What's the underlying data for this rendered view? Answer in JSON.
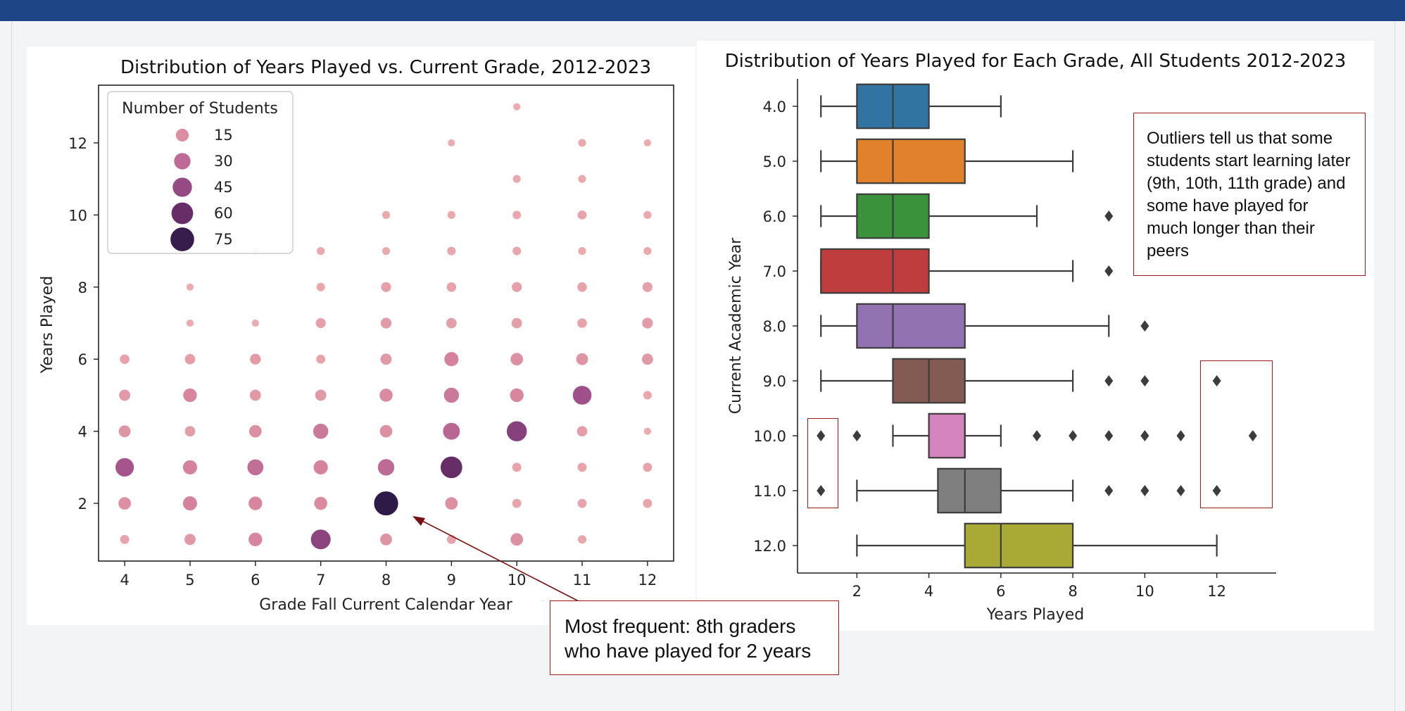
{
  "colors": {
    "header_bar": "#1e4586",
    "annotation_border": "#9b1c1c",
    "bubble_scale": [
      "#eeb0b0",
      "#d6839c",
      "#a85690",
      "#6b2f6a",
      "#2e1a47"
    ]
  },
  "annotations": {
    "outliers_note": "Outliers tell us that some students start learning later (9th, 10th, 11th grade) and some have played for much longer than their peers",
    "frequent_note": "Most frequent: 8th graders who have played for 2 years"
  },
  "chart_data": [
    {
      "type": "scatter",
      "title": "Distribution of Years Played vs. Current Grade, 2012-2023",
      "xlabel": "Grade Fall Current Calendar Year",
      "ylabel": "Years Played",
      "x_ticks": [
        4,
        5,
        6,
        7,
        8,
        9,
        10,
        11,
        12
      ],
      "y_ticks": [
        2,
        4,
        6,
        8,
        10,
        12
      ],
      "xlim": [
        3.6,
        12.4
      ],
      "ylim": [
        0.4,
        13.6
      ],
      "grid": false,
      "legend": {
        "title": "Number of Students",
        "placement": "top-left",
        "sizes": [
          15,
          30,
          45,
          60,
          75
        ]
      },
      "points": [
        {
          "x": 4,
          "y": 1,
          "count": 5
        },
        {
          "x": 4,
          "y": 2,
          "count": 14
        },
        {
          "x": 4,
          "y": 3,
          "count": 40
        },
        {
          "x": 4,
          "y": 4,
          "count": 12
        },
        {
          "x": 4,
          "y": 5,
          "count": 10
        },
        {
          "x": 4,
          "y": 6,
          "count": 6
        },
        {
          "x": 5,
          "y": 1,
          "count": 10
        },
        {
          "x": 5,
          "y": 2,
          "count": 20
        },
        {
          "x": 5,
          "y": 3,
          "count": 20
        },
        {
          "x": 5,
          "y": 4,
          "count": 8
        },
        {
          "x": 5,
          "y": 5,
          "count": 18
        },
        {
          "x": 5,
          "y": 6,
          "count": 8
        },
        {
          "x": 5,
          "y": 7,
          "count": 2
        },
        {
          "x": 5,
          "y": 8,
          "count": 2
        },
        {
          "x": 6,
          "y": 1,
          "count": 18
        },
        {
          "x": 6,
          "y": 2,
          "count": 18
        },
        {
          "x": 6,
          "y": 3,
          "count": 28
        },
        {
          "x": 6,
          "y": 4,
          "count": 14
        },
        {
          "x": 6,
          "y": 5,
          "count": 10
        },
        {
          "x": 6,
          "y": 6,
          "count": 9
        },
        {
          "x": 6,
          "y": 7,
          "count": 2
        },
        {
          "x": 6,
          "y": 9,
          "count": 1
        },
        {
          "x": 7,
          "y": 1,
          "count": 48
        },
        {
          "x": 7,
          "y": 2,
          "count": 16
        },
        {
          "x": 7,
          "y": 3,
          "count": 20
        },
        {
          "x": 7,
          "y": 4,
          "count": 24
        },
        {
          "x": 7,
          "y": 5,
          "count": 10
        },
        {
          "x": 7,
          "y": 6,
          "count": 5
        },
        {
          "x": 7,
          "y": 7,
          "count": 7
        },
        {
          "x": 7,
          "y": 8,
          "count": 4
        },
        {
          "x": 7,
          "y": 9,
          "count": 3
        },
        {
          "x": 8,
          "y": 1,
          "count": 12
        },
        {
          "x": 8,
          "y": 2,
          "count": 78
        },
        {
          "x": 8,
          "y": 3,
          "count": 30
        },
        {
          "x": 8,
          "y": 4,
          "count": 14
        },
        {
          "x": 8,
          "y": 5,
          "count": 16
        },
        {
          "x": 8,
          "y": 6,
          "count": 10
        },
        {
          "x": 8,
          "y": 7,
          "count": 9
        },
        {
          "x": 8,
          "y": 8,
          "count": 7
        },
        {
          "x": 8,
          "y": 9,
          "count": 3
        },
        {
          "x": 8,
          "y": 10,
          "count": 3
        },
        {
          "x": 9,
          "y": 1,
          "count": 5
        },
        {
          "x": 9,
          "y": 2,
          "count": 14
        },
        {
          "x": 9,
          "y": 3,
          "count": 60
        },
        {
          "x": 9,
          "y": 4,
          "count": 32
        },
        {
          "x": 9,
          "y": 5,
          "count": 24
        },
        {
          "x": 9,
          "y": 6,
          "count": 20
        },
        {
          "x": 9,
          "y": 7,
          "count": 8
        },
        {
          "x": 9,
          "y": 8,
          "count": 6
        },
        {
          "x": 9,
          "y": 9,
          "count": 4
        },
        {
          "x": 9,
          "y": 10,
          "count": 3
        },
        {
          "x": 9,
          "y": 12,
          "count": 2
        },
        {
          "x": 10,
          "y": 1,
          "count": 14
        },
        {
          "x": 10,
          "y": 2,
          "count": 5
        },
        {
          "x": 10,
          "y": 3,
          "count": 5
        },
        {
          "x": 10,
          "y": 4,
          "count": 50
        },
        {
          "x": 10,
          "y": 5,
          "count": 18
        },
        {
          "x": 10,
          "y": 6,
          "count": 14
        },
        {
          "x": 10,
          "y": 7,
          "count": 8
        },
        {
          "x": 10,
          "y": 8,
          "count": 7
        },
        {
          "x": 10,
          "y": 9,
          "count": 4
        },
        {
          "x": 10,
          "y": 10,
          "count": 4
        },
        {
          "x": 10,
          "y": 11,
          "count": 3
        },
        {
          "x": 10,
          "y": 13,
          "count": 2
        },
        {
          "x": 11,
          "y": 1,
          "count": 4
        },
        {
          "x": 11,
          "y": 2,
          "count": 5
        },
        {
          "x": 11,
          "y": 3,
          "count": 5
        },
        {
          "x": 11,
          "y": 4,
          "count": 8
        },
        {
          "x": 11,
          "y": 5,
          "count": 42
        },
        {
          "x": 11,
          "y": 6,
          "count": 12
        },
        {
          "x": 11,
          "y": 7,
          "count": 6
        },
        {
          "x": 11,
          "y": 8,
          "count": 6
        },
        {
          "x": 11,
          "y": 9,
          "count": 3
        },
        {
          "x": 11,
          "y": 10,
          "count": 5
        },
        {
          "x": 11,
          "y": 11,
          "count": 3
        },
        {
          "x": 11,
          "y": 12,
          "count": 3
        },
        {
          "x": 12,
          "y": 2,
          "count": 5
        },
        {
          "x": 12,
          "y": 3,
          "count": 5
        },
        {
          "x": 12,
          "y": 4,
          "count": 2
        },
        {
          "x": 12,
          "y": 5,
          "count": 4
        },
        {
          "x": 12,
          "y": 6,
          "count": 10
        },
        {
          "x": 12,
          "y": 7,
          "count": 9
        },
        {
          "x": 12,
          "y": 8,
          "count": 7
        },
        {
          "x": 12,
          "y": 9,
          "count": 3
        },
        {
          "x": 12,
          "y": 10,
          "count": 3
        },
        {
          "x": 12,
          "y": 12,
          "count": 2
        }
      ]
    },
    {
      "type": "box",
      "title": "Distribution of Years Played for Each Grade, All Students 2012-2023",
      "xlabel": "Years Played",
      "ylabel": "Current Academic Year",
      "x_ticks": [
        2,
        4,
        6,
        8,
        10,
        12
      ],
      "xlim": [
        0.35,
        13.65
      ],
      "grid": false,
      "categories": [
        "4.0",
        "5.0",
        "6.0",
        "7.0",
        "8.0",
        "9.0",
        "10.0",
        "11.0",
        "12.0"
      ],
      "boxes": [
        {
          "label": "4.0",
          "whisker_low": 1,
          "q1": 2,
          "median": 3,
          "q3": 4,
          "whisker_high": 6,
          "outliers": [],
          "color": "#3274a1"
        },
        {
          "label": "5.0",
          "whisker_low": 1,
          "q1": 2,
          "median": 3,
          "q3": 5,
          "whisker_high": 8,
          "outliers": [],
          "color": "#e1812c"
        },
        {
          "label": "6.0",
          "whisker_low": 1,
          "q1": 2,
          "median": 3,
          "q3": 4,
          "whisker_high": 7,
          "outliers": [
            9
          ],
          "color": "#3a923a"
        },
        {
          "label": "7.0",
          "whisker_low": 1,
          "q1": 1,
          "median": 3,
          "q3": 4,
          "whisker_high": 8,
          "outliers": [
            9
          ],
          "color": "#c03d3e"
        },
        {
          "label": "8.0",
          "whisker_low": 1,
          "q1": 2,
          "median": 3,
          "q3": 5,
          "whisker_high": 9,
          "outliers": [
            10
          ],
          "color": "#9372b2"
        },
        {
          "label": "9.0",
          "whisker_low": 1,
          "q1": 3,
          "median": 4,
          "q3": 5,
          "whisker_high": 8,
          "outliers": [
            9,
            10,
            12
          ],
          "color": "#845b53"
        },
        {
          "label": "10.0",
          "whisker_low": 3,
          "q1": 4,
          "median": 5,
          "q3": 5,
          "whisker_high": 6,
          "outliers": [
            1,
            2,
            7,
            8,
            9,
            10,
            11,
            13
          ],
          "color": "#d684bd"
        },
        {
          "label": "11.0",
          "whisker_low": 2,
          "q1": 4.25,
          "median": 5,
          "q3": 6,
          "whisker_high": 8,
          "outliers": [
            1,
            9,
            10,
            11,
            12
          ],
          "color": "#7f7f7f"
        },
        {
          "label": "12.0",
          "whisker_low": 2,
          "q1": 5,
          "median": 6,
          "q3": 8,
          "whisker_high": 12,
          "outliers": [],
          "color": "#a9aa35"
        }
      ]
    }
  ]
}
